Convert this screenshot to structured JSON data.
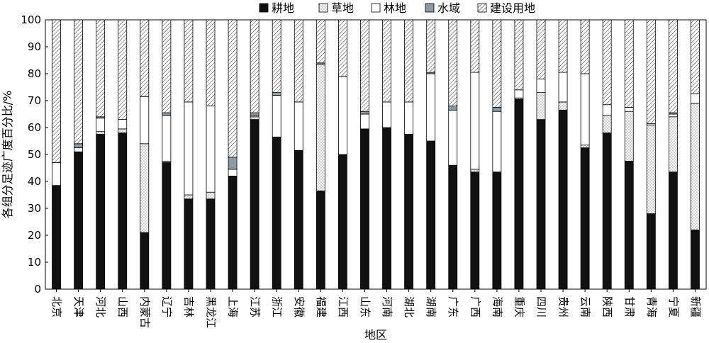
{
  "chart_data": {
    "type": "bar",
    "stacked": true,
    "xlabel": "地区",
    "ylabel": "各组分足迹广度百分比/%",
    "ylim": [
      0,
      100
    ],
    "yticks": [
      0,
      10,
      20,
      30,
      40,
      50,
      60,
      70,
      80,
      90,
      100
    ],
    "legend_position": "top",
    "grid": false,
    "categories": [
      "北京",
      "天津",
      "河北",
      "山西",
      "内蒙古",
      "辽宁",
      "吉林",
      "黑龙江",
      "上海",
      "江苏",
      "浙江",
      "安徽",
      "福建",
      "江西",
      "山东",
      "河南",
      "湖北",
      "湖南",
      "广东",
      "广西",
      "海南",
      "重庆",
      "四川",
      "贵州",
      "云南",
      "陕西",
      "甘肃",
      "青海",
      "宁夏",
      "新疆"
    ],
    "series": [
      {
        "name": "耕地",
        "pattern": "solid-black",
        "values": [
          38.5,
          51,
          57.5,
          58,
          21,
          47,
          33.5,
          33.5,
          42,
          63,
          56.5,
          51.5,
          36.5,
          50,
          59.5,
          60,
          57.5,
          55,
          46,
          43.5,
          43.5,
          70.5,
          63,
          66.5,
          52.5,
          58,
          47.5,
          28,
          43.5,
          22
        ]
      },
      {
        "name": "草地",
        "pattern": "dots",
        "values": [
          0,
          0,
          1,
          1.5,
          33,
          0.5,
          1.5,
          2.5,
          0,
          1,
          0,
          0,
          47,
          0,
          0,
          0,
          0,
          0,
          0,
          1,
          0,
          0.5,
          10,
          3,
          1,
          6.5,
          18.5,
          33,
          20.5,
          47
        ]
      },
      {
        "name": "林地",
        "pattern": "white",
        "values": [
          8.5,
          1.5,
          5,
          3.5,
          17.5,
          17,
          34.5,
          32,
          2.5,
          0.5,
          15.5,
          18,
          0,
          29,
          5.5,
          9.5,
          12,
          25,
          20.5,
          36,
          22.5,
          3,
          5,
          11,
          26.5,
          4,
          1.5,
          0.5,
          1,
          3.5
        ]
      },
      {
        "name": "水域",
        "pattern": "gray",
        "values": [
          0,
          1.5,
          0.5,
          0,
          0,
          1,
          0,
          0,
          4.5,
          1,
          1,
          0,
          0.5,
          0,
          1,
          0,
          0,
          0.5,
          1.5,
          0,
          1.5,
          0,
          0,
          0,
          0,
          0,
          0,
          0,
          0.5,
          0
        ]
      },
      {
        "name": "建设用地",
        "pattern": "hatch",
        "values": [
          53,
          46,
          36,
          37,
          28.5,
          34.5,
          30.5,
          32,
          51,
          34.5,
          27,
          30.5,
          16,
          21,
          34,
          30.5,
          30.5,
          19.5,
          32,
          19.5,
          32.5,
          26,
          22,
          19.5,
          20,
          31.5,
          32.5,
          38.5,
          34.5,
          27.5
        ]
      }
    ]
  }
}
